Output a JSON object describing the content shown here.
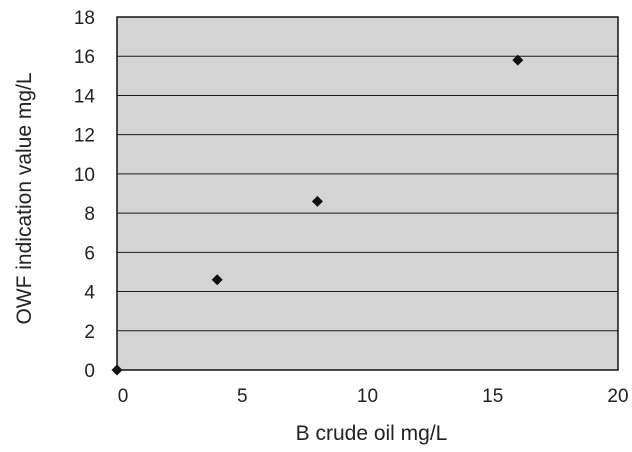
{
  "chart_data": {
    "type": "scatter",
    "title": "",
    "xlabel": "B crude oil  mg/L",
    "ylabel": "OWF indication value  mg/L",
    "xlim": [
      0,
      20
    ],
    "ylim": [
      0,
      18
    ],
    "x_ticks": [
      0,
      5,
      10,
      15,
      20
    ],
    "y_ticks": [
      0,
      2,
      4,
      6,
      8,
      10,
      12,
      14,
      16,
      18
    ],
    "grid": "horizontal",
    "legend": "none",
    "series": [
      {
        "marker": "diamond",
        "points": [
          {
            "x": 0,
            "y": 0
          },
          {
            "x": 4,
            "y": 4.6
          },
          {
            "x": 8,
            "y": 8.6
          },
          {
            "x": 16,
            "y": 15.8
          }
        ]
      }
    ],
    "colors": {
      "plot_background": "#d4d4d4",
      "gridline": "#1a1a1a",
      "marker": "#111111",
      "axis": "#111111",
      "text": "#222222"
    }
  }
}
